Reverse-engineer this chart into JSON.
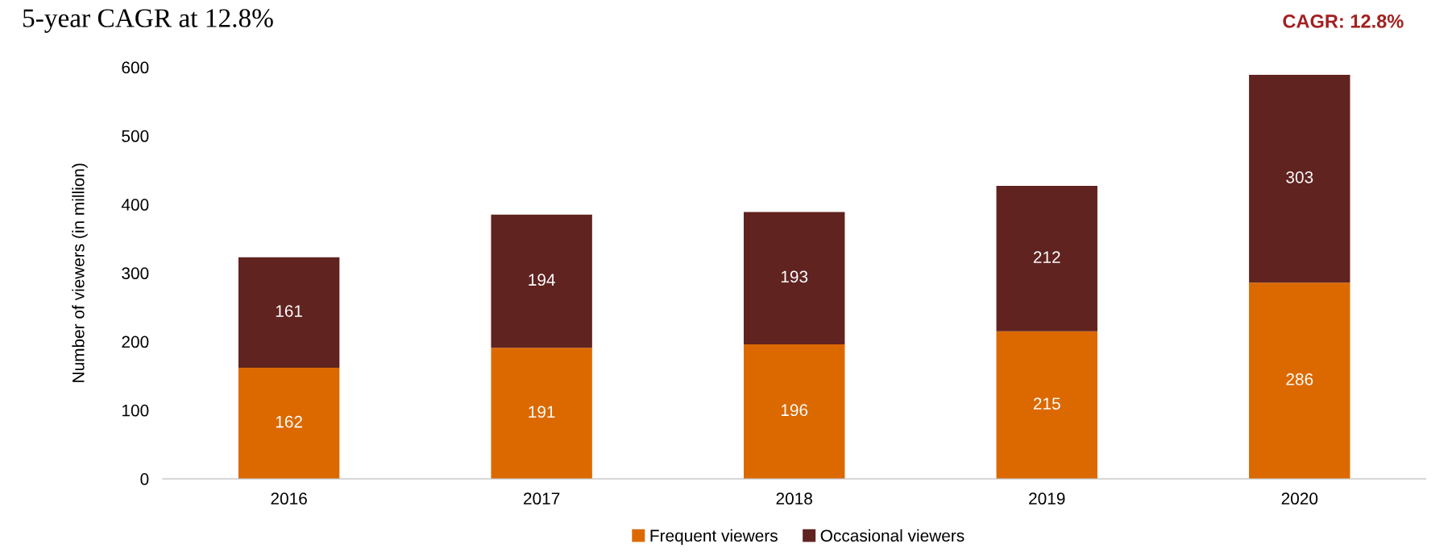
{
  "chart_data": {
    "type": "bar",
    "title": "5-year CAGR at 12.8%",
    "ylabel": "Number of viewers (in million)",
    "categories": [
      "2016",
      "2017",
      "2018",
      "2019",
      "2020"
    ],
    "stacked": true,
    "series": [
      {
        "name": "Frequent viewers",
        "color": "#dc6900",
        "values": [
          162,
          191,
          196,
          215,
          286
        ]
      },
      {
        "name": "Occasional viewers",
        "color": "#602320",
        "values": [
          161,
          194,
          193,
          212,
          303
        ]
      }
    ],
    "ylim": [
      0,
      600
    ],
    "yticks": [
      0,
      100,
      200,
      300,
      400,
      500,
      600
    ],
    "data_labels": true,
    "legend": "bottom",
    "grid": false,
    "annotations": [
      "CAGR: 12.8%"
    ]
  }
}
